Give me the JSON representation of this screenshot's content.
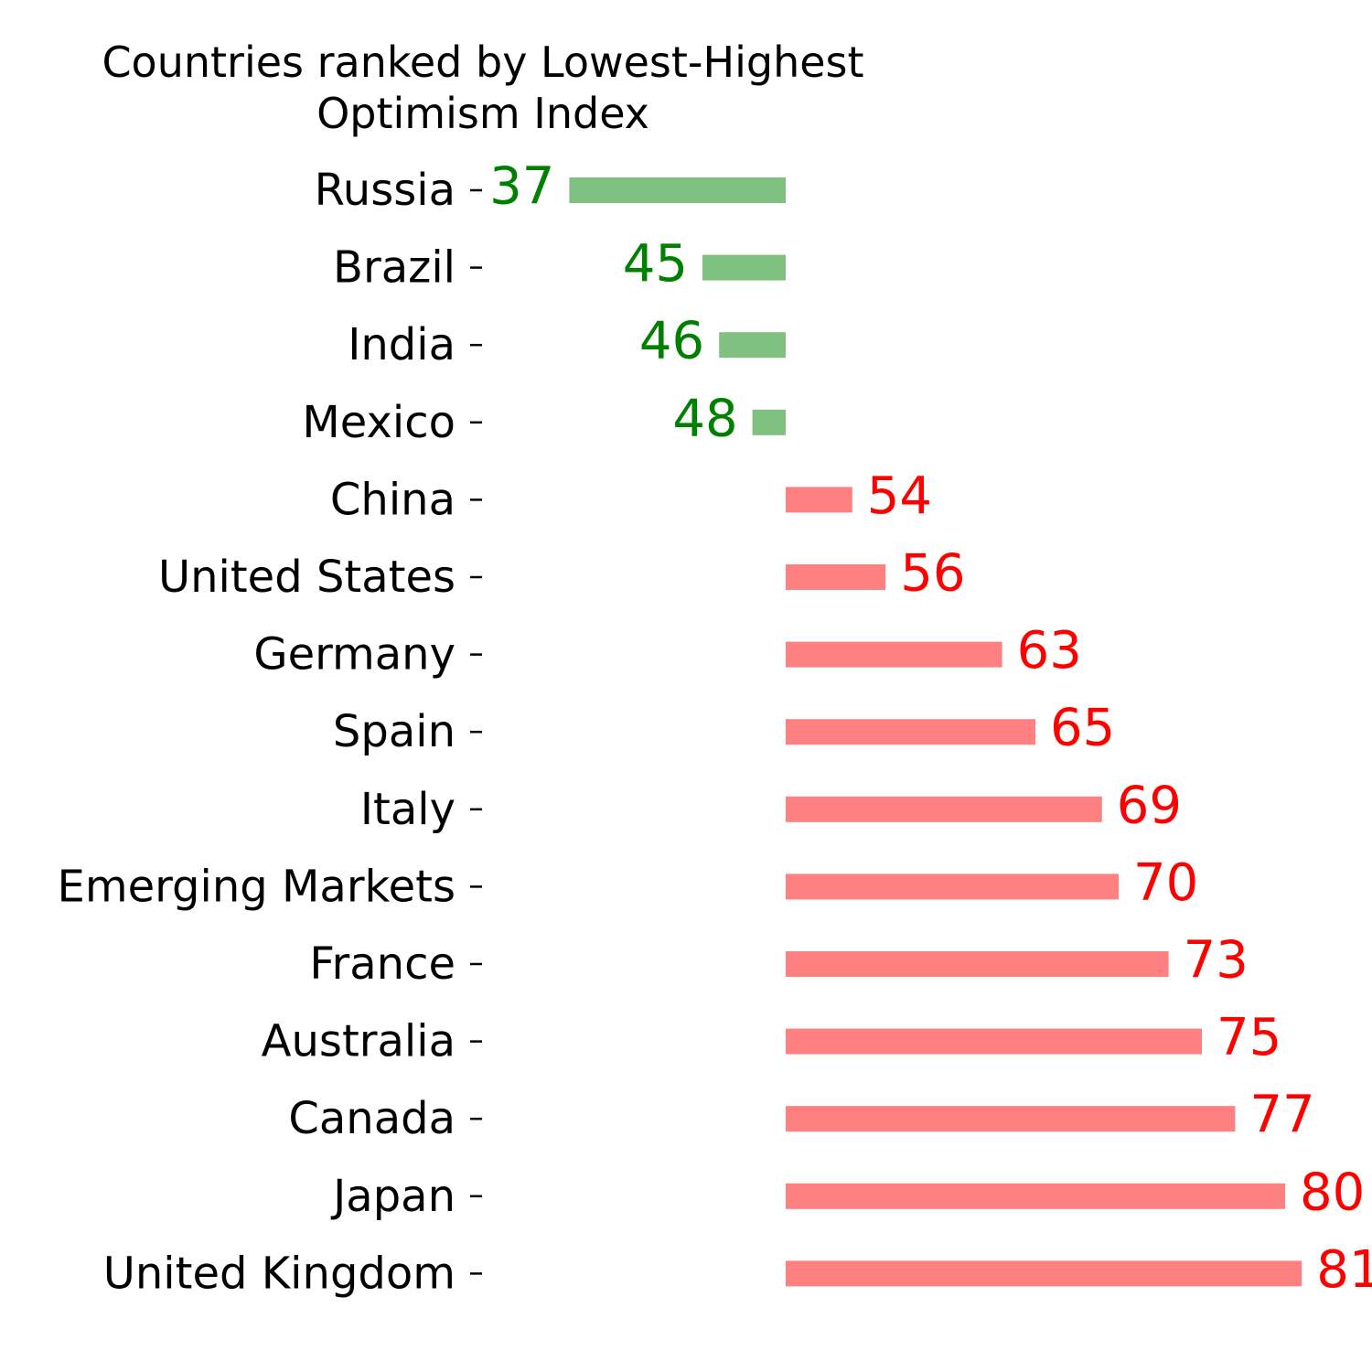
{
  "chart_data": {
    "type": "bar",
    "orientation": "horizontal",
    "title_line1": "Countries ranked by Lowest-Highest",
    "title_line2": "Optimism Index",
    "baseline": 50,
    "categories": [
      "Russia",
      "Brazil",
      "India",
      "Mexico",
      "China",
      "United States",
      "Germany",
      "Spain",
      "Italy",
      "Emerging Markets",
      "France",
      "Australia",
      "Canada",
      "Japan",
      "United Kingdom"
    ],
    "values": [
      37,
      45,
      46,
      48,
      54,
      56,
      63,
      65,
      69,
      70,
      73,
      75,
      77,
      80,
      81
    ],
    "colors": {
      "below_bar": "#80c080",
      "below_label": "#008000",
      "above_bar": "#ff8080",
      "above_label": "#ff0000"
    },
    "grid": false,
    "axes_visible": false
  }
}
